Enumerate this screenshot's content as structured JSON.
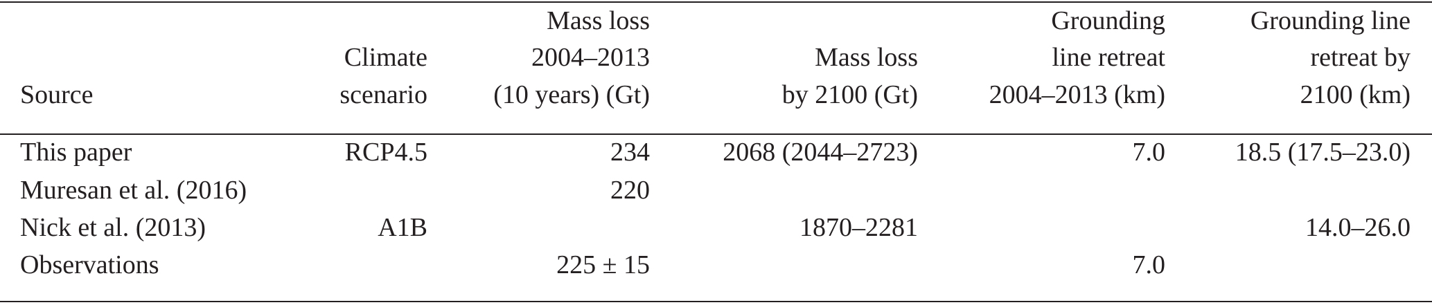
{
  "table": {
    "header": [
      [
        "Source"
      ],
      [
        "Climate",
        "scenario"
      ],
      [
        "Mass loss",
        "2004–2013",
        "(10 years) (Gt)"
      ],
      [
        "Mass loss",
        "by 2100 (Gt)"
      ],
      [
        "Grounding",
        "line retreat",
        "2004–2013 (km)"
      ],
      [
        "Grounding line",
        "retreat by",
        "2100 (km)"
      ]
    ],
    "rows": [
      [
        "This paper",
        "RCP4.5",
        "234",
        "2068 (2044–2723)",
        "7.0",
        "18.5 (17.5–23.0)"
      ],
      [
        "Muresan et al. (2016)",
        null,
        "220",
        null,
        null,
        null
      ],
      [
        "Nick et al. (2013)",
        "A1B",
        null,
        "1870–2281",
        null,
        "14.0–26.0"
      ],
      [
        "Observations",
        null,
        "225 ± 15",
        null,
        "7.0",
        null
      ]
    ]
  }
}
